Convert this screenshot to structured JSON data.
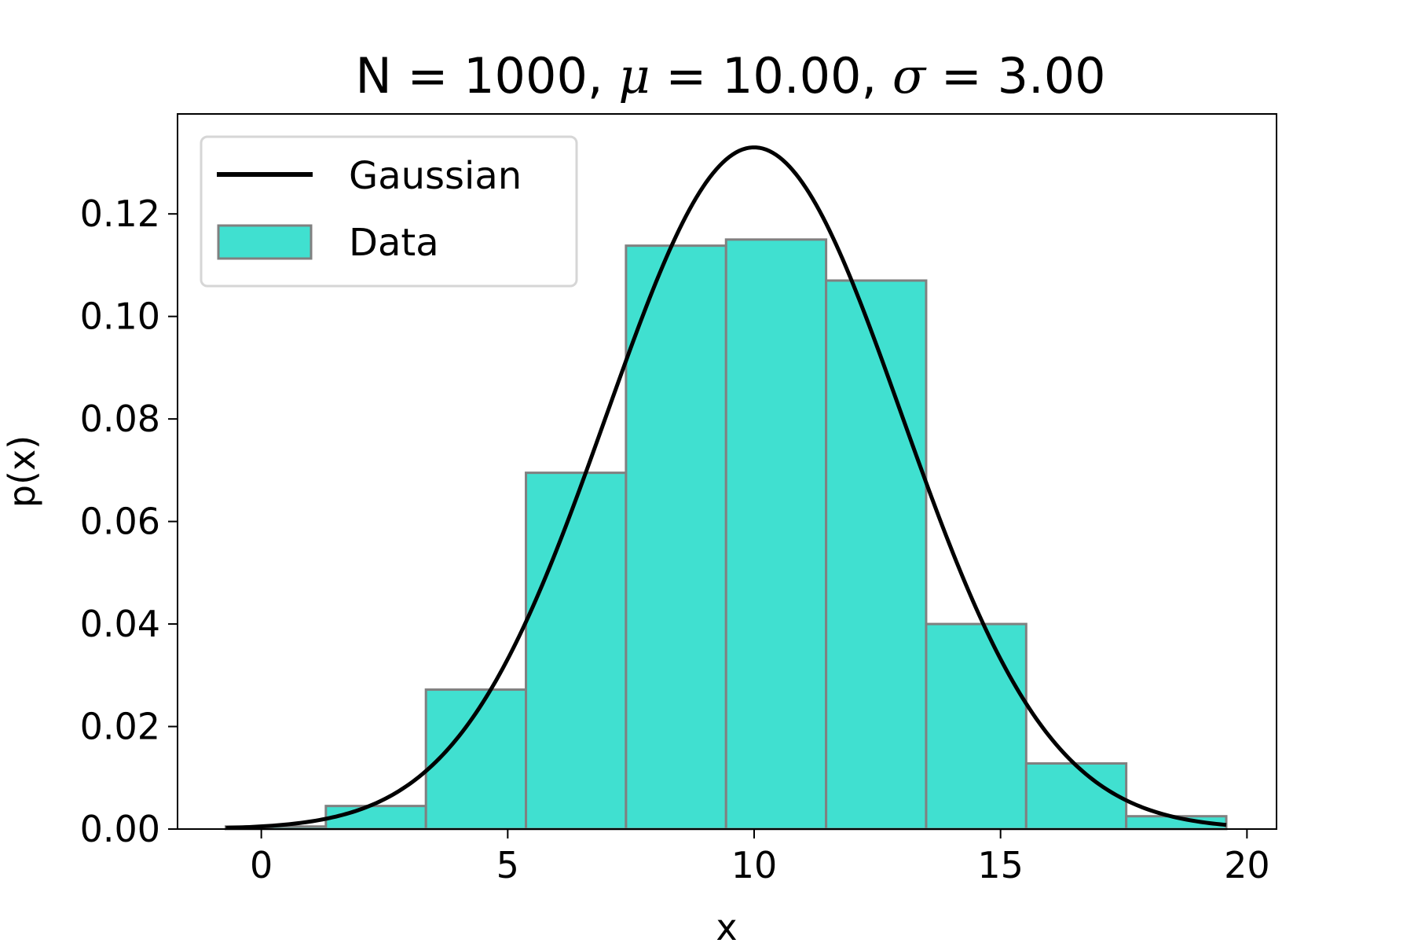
{
  "chart_data": {
    "type": "bar",
    "title": {
      "prefix": "N = 1000, ",
      "mu_symbol": "μ",
      "mu_text": " = 10.00, ",
      "sigma_symbol": "σ",
      "sigma_text": " = 3.00"
    },
    "xlabel": "x",
    "ylabel": "p(x)",
    "xlim": [
      -1.7,
      20.6
    ],
    "ylim": [
      0,
      0.1395
    ],
    "x_ticks": [
      0,
      5,
      10,
      15,
      20
    ],
    "x_tick_labels": [
      "0",
      "5",
      "10",
      "15",
      "20"
    ],
    "y_ticks": [
      0.0,
      0.02,
      0.04,
      0.06,
      0.08,
      0.1,
      0.12
    ],
    "y_tick_labels": [
      "0.00",
      "0.02",
      "0.04",
      "0.06",
      "0.08",
      "0.10",
      "0.12"
    ],
    "grid": false,
    "legend_position": "top-left",
    "series": [
      {
        "name": "Data",
        "kind": "histogram",
        "bin_edges": [
          -0.72,
          1.31,
          3.34,
          5.37,
          7.4,
          9.43,
          11.46,
          13.49,
          15.52,
          17.55,
          19.58
        ],
        "values": [
          0.0005,
          0.0045,
          0.0272,
          0.0695,
          0.1138,
          0.115,
          0.107,
          0.04,
          0.0128,
          0.0025
        ],
        "fill": "#40e0d0",
        "edge": "#808080"
      },
      {
        "name": "Gaussian",
        "kind": "line",
        "mu": 10.0,
        "sigma": 3.0,
        "x_range": [
          -0.72,
          19.58
        ],
        "color": "#000000"
      }
    ]
  }
}
